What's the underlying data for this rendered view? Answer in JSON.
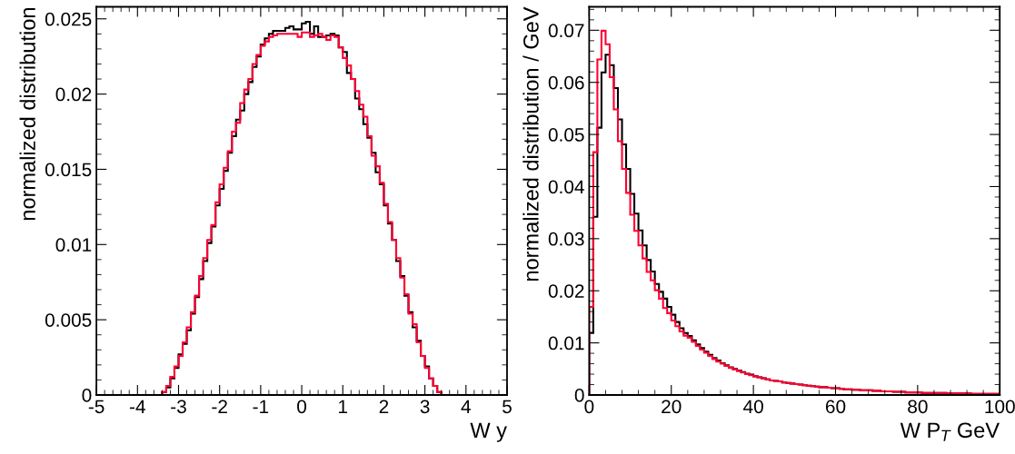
{
  "chart_data": [
    {
      "type": "histogram",
      "xlabel": "W y",
      "ylabel": "normalized distribution",
      "bins": [
        -5,
        -4.9,
        -4.8,
        -4.7,
        -4.6,
        -4.5,
        -4.4,
        -4.3,
        -4.2,
        -4.1,
        -4,
        -3.9,
        -3.8,
        -3.7,
        -3.6,
        -3.5,
        -3.4,
        -3.3,
        -3.2,
        -3.1,
        -3,
        -2.9,
        -2.8,
        -2.7,
        -2.6,
        -2.5,
        -2.4,
        -2.3,
        -2.2,
        -2.1,
        -2,
        -1.9,
        -1.8,
        -1.7,
        -1.6,
        -1.5,
        -1.4,
        -1.3,
        -1.2,
        -1.1,
        -1,
        -0.9,
        -0.8,
        -0.7,
        -0.6,
        -0.5,
        -0.4,
        -0.3,
        -0.2,
        -0.1,
        0,
        0.1,
        0.2,
        0.3,
        0.4,
        0.5,
        0.6,
        0.7,
        0.8,
        0.9,
        1,
        1.1,
        1.2,
        1.3,
        1.4,
        1.5,
        1.6,
        1.7,
        1.8,
        1.9,
        2,
        2.1,
        2.2,
        2.3,
        2.4,
        2.5,
        2.6,
        2.7,
        2.8,
        2.9,
        3,
        3.1,
        3.2,
        3.3,
        3.4,
        3.5,
        3.6,
        3.7,
        3.8,
        3.9,
        4,
        4.1,
        4.2,
        4.3,
        4.4,
        4.5,
        4.6,
        4.7,
        4.8,
        4.9,
        5
      ],
      "series": [
        {
          "color": "#000000",
          "values": [
            0,
            0,
            0,
            0,
            0,
            0,
            0,
            0,
            0,
            0,
            0,
            0,
            0,
            0,
            0,
            0,
            0.0002,
            0.0005,
            0.0011,
            0.0018,
            0.0027,
            0.0034,
            0.0043,
            0.0054,
            0.0065,
            0.0077,
            0.0089,
            0.0101,
            0.0112,
            0.0126,
            0.0137,
            0.0149,
            0.0161,
            0.0172,
            0.0183,
            0.0189,
            0.02,
            0.0208,
            0.0218,
            0.0225,
            0.0233,
            0.0237,
            0.024,
            0.0242,
            0.0242,
            0.0242,
            0.0244,
            0.0245,
            0.0243,
            0.0243,
            0.0247,
            0.0248,
            0.024,
            0.0245,
            0.0238,
            0.0238,
            0.0239,
            0.024,
            0.0239,
            0.0231,
            0.0228,
            0.0214,
            0.021,
            0.0197,
            0.019,
            0.018,
            0.0171,
            0.0161,
            0.0148,
            0.014,
            0.0126,
            0.0114,
            0.0103,
            0.0089,
            0.0079,
            0.0066,
            0.0055,
            0.0045,
            0.0036,
            0.0026,
            0.0019,
            0.0011,
            0.0006,
            0.0002,
            0,
            0,
            0,
            0,
            0,
            0,
            0,
            0,
            0,
            0,
            0,
            0,
            0,
            0,
            0,
            0
          ]
        },
        {
          "color": "#ff0033",
          "values": [
            0,
            0,
            0,
            0,
            0,
            0,
            0,
            0,
            0,
            0,
            0,
            0,
            0,
            0,
            0,
            0,
            0.0002,
            0.0006,
            0.0012,
            0.0019,
            0.0026,
            0.0035,
            0.0045,
            0.0055,
            0.0066,
            0.0079,
            0.0091,
            0.0103,
            0.0113,
            0.0128,
            0.014,
            0.0151,
            0.0162,
            0.0175,
            0.0181,
            0.0194,
            0.0203,
            0.021,
            0.022,
            0.0226,
            0.0232,
            0.0235,
            0.0238,
            0.0239,
            0.024,
            0.024,
            0.024,
            0.024,
            0.024,
            0.0238,
            0.0241,
            0.0241,
            0.0238,
            0.0239,
            0.024,
            0.0238,
            0.0236,
            0.0239,
            0.0238,
            0.0231,
            0.0224,
            0.0219,
            0.021,
            0.0202,
            0.0193,
            0.0185,
            0.0172,
            0.0159,
            0.0152,
            0.0141,
            0.0127,
            0.0115,
            0.0103,
            0.0091,
            0.0078,
            0.0067,
            0.0054,
            0.0047,
            0.0035,
            0.0026,
            0.0018,
            0.0011,
            0.0006,
            0.0002,
            0,
            0,
            0,
            0,
            0,
            0,
            0,
            0,
            0,
            0,
            0,
            0,
            0,
            0,
            0,
            0
          ]
        }
      ],
      "xlim": [
        -5,
        5
      ],
      "xticks": [
        -5,
        -4,
        -3,
        -2,
        -1,
        0,
        1,
        2,
        3,
        4,
        5
      ],
      "ylim": [
        0,
        0.0258
      ],
      "yticks": [
        0,
        0.005,
        0.01,
        0.015,
        0.02,
        0.025
      ]
    },
    {
      "type": "histogram",
      "xlabel": "W P$_{T}$ GeV",
      "ylabel": "normalized distribution / GeV",
      "bins": [
        0,
        1,
        2,
        3,
        4,
        5,
        6,
        7,
        8,
        9,
        10,
        11,
        12,
        13,
        14,
        15,
        16,
        17,
        18,
        19,
        20,
        21,
        22,
        23,
        24,
        25,
        26,
        27,
        28,
        29,
        30,
        31,
        32,
        33,
        34,
        35,
        36,
        37,
        38,
        39,
        40,
        41,
        42,
        43,
        44,
        45,
        46,
        47,
        48,
        49,
        50,
        51,
        52,
        53,
        54,
        55,
        56,
        57,
        58,
        59,
        60,
        61,
        62,
        63,
        64,
        65,
        66,
        67,
        68,
        69,
        70,
        71,
        72,
        73,
        74,
        75,
        76,
        77,
        78,
        79,
        80,
        81,
        82,
        83,
        84,
        85,
        86,
        87,
        88,
        89,
        90,
        91,
        92,
        93,
        94,
        95,
        96,
        97,
        98,
        99,
        100
      ],
      "series": [
        {
          "color": "#000000",
          "values": [
            0.0119,
            0.0342,
            0.0513,
            0.0619,
            0.0653,
            0.0633,
            0.0589,
            0.0529,
            0.0481,
            0.0434,
            0.0386,
            0.0348,
            0.0316,
            0.0287,
            0.0259,
            0.0237,
            0.0213,
            0.0198,
            0.0185,
            0.0169,
            0.0154,
            0.014,
            0.0128,
            0.0119,
            0.0113,
            0.0105,
            0.0097,
            0.009,
            0.0083,
            0.0077,
            0.0071,
            0.0066,
            0.0061,
            0.0057,
            0.0053,
            0.005,
            0.0047,
            0.0044,
            0.0041,
            0.0039,
            0.0036,
            0.0034,
            0.0032,
            0.003,
            0.0028,
            0.0027,
            0.0026,
            0.0024,
            0.0023,
            0.0022,
            0.0021,
            0.002,
            0.0019,
            0.0018,
            0.0017,
            0.0016,
            0.0015,
            0.0015,
            0.0014,
            0.0013,
            0.0013,
            0.0012,
            0.0011,
            0.0011,
            0.001,
            0.001,
            0.0009,
            0.0009,
            0.0009,
            0.0008,
            0.0008,
            0.0007,
            0.0007,
            0.0007,
            0.0006,
            0.0006,
            0.0006,
            0.0005,
            0.0005,
            0.0005,
            0.0005,
            0.0004,
            0.0004,
            0.0004,
            0.0004,
            0.0004,
            0.0004,
            0.0003,
            0.0003,
            0.0003,
            0.0003,
            0.0003,
            0.0003,
            0.0002,
            0.0002,
            0.0002,
            0.0002,
            0.0002,
            0.0002,
            0.0002
          ]
        },
        {
          "color": "#ff0033",
          "values": [
            0.0169,
            0.0466,
            0.0644,
            0.0699,
            0.0673,
            0.061,
            0.0548,
            0.0487,
            0.0434,
            0.0388,
            0.0346,
            0.0315,
            0.0287,
            0.0262,
            0.0236,
            0.022,
            0.0201,
            0.0185,
            0.0167,
            0.0157,
            0.0143,
            0.0132,
            0.0122,
            0.0114,
            0.011,
            0.0102,
            0.0094,
            0.0087,
            0.0081,
            0.0075,
            0.0069,
            0.0064,
            0.006,
            0.0056,
            0.0052,
            0.0049,
            0.0046,
            0.0043,
            0.004,
            0.0038,
            0.0036,
            0.0034,
            0.0032,
            0.003,
            0.0028,
            0.0027,
            0.0026,
            0.0024,
            0.0023,
            0.0022,
            0.0021,
            0.002,
            0.0019,
            0.0018,
            0.0017,
            0.0016,
            0.0015,
            0.0015,
            0.0014,
            0.0013,
            0.0013,
            0.0012,
            0.0011,
            0.0011,
            0.001,
            0.001,
            0.0009,
            0.0009,
            0.0009,
            0.0008,
            0.0008,
            0.0007,
            0.0007,
            0.0007,
            0.0006,
            0.0006,
            0.0006,
            0.0005,
            0.0005,
            0.0005,
            0.0005,
            0.0004,
            0.0004,
            0.0004,
            0.0004,
            0.0004,
            0.0004,
            0.0003,
            0.0003,
            0.0003,
            0.0003,
            0.0003,
            0.0003,
            0.0002,
            0.0002,
            0.0002,
            0.0002,
            0.0002,
            0.0002,
            0.0002
          ]
        }
      ],
      "xlim": [
        0,
        100
      ],
      "xticks": [
        0,
        20,
        40,
        60,
        80,
        100
      ],
      "ylim": [
        0,
        0.0745
      ],
      "yticks": [
        0,
        0.01,
        0.02,
        0.03,
        0.04,
        0.05,
        0.06,
        0.07
      ]
    }
  ]
}
